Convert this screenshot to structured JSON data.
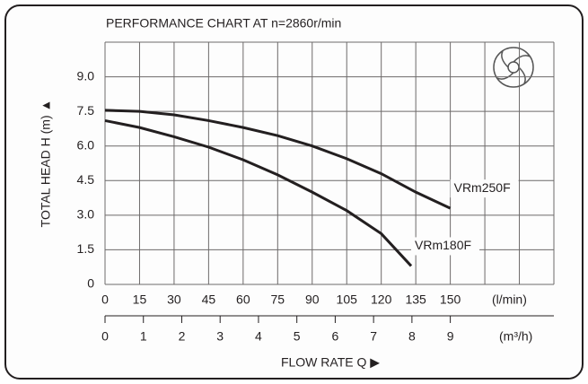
{
  "chart_data": {
    "type": "line",
    "title": "PERFORMANCE CHART AT n=2860r/min",
    "y_label": "TOTAL HEAD H (m) ▲",
    "x_label": "FLOW RATE Q ▶",
    "x_unit": "(l/min)",
    "x2_unit": "(m³/h)",
    "x": [
      0,
      15,
      30,
      45,
      60,
      75,
      90,
      105,
      120,
      135,
      150
    ],
    "series": [
      {
        "name": "VRm250F",
        "color": "#231f20",
        "x": [
          0,
          15,
          30,
          45,
          60,
          75,
          90,
          105,
          120,
          135,
          150
        ],
        "values": [
          7.55,
          7.5,
          7.35,
          7.1,
          6.8,
          6.45,
          6.0,
          5.45,
          4.8,
          4.0,
          3.3
        ]
      },
      {
        "name": "VRm180F",
        "color": "#231f20",
        "x": [
          0,
          15,
          30,
          45,
          60,
          75,
          90,
          105,
          120,
          133
        ],
        "values": [
          7.1,
          6.8,
          6.4,
          5.95,
          5.4,
          4.75,
          4.0,
          3.2,
          2.2,
          0.8
        ]
      }
    ],
    "xlim": [
      0,
      195
    ],
    "xticks": [
      0,
      15,
      30,
      45,
      60,
      75,
      90,
      105,
      120,
      135,
      150
    ],
    "x2lim": [
      0,
      11.7
    ],
    "x2ticks": [
      0,
      1,
      2,
      3,
      4,
      5,
      6,
      7,
      8,
      9
    ],
    "ylim": [
      0,
      10.5
    ],
    "yticks": [
      0,
      {
        "value": 1.5,
        "label": "1.5"
      },
      {
        "value": 3,
        "label": "3.0"
      },
      {
        "value": 4.5,
        "label": "4.5"
      },
      {
        "value": 6,
        "label": "6.0"
      },
      {
        "value": 7.5,
        "label": "7.5"
      },
      {
        "value": 9,
        "label": "9.0"
      }
    ],
    "grid": true
  }
}
